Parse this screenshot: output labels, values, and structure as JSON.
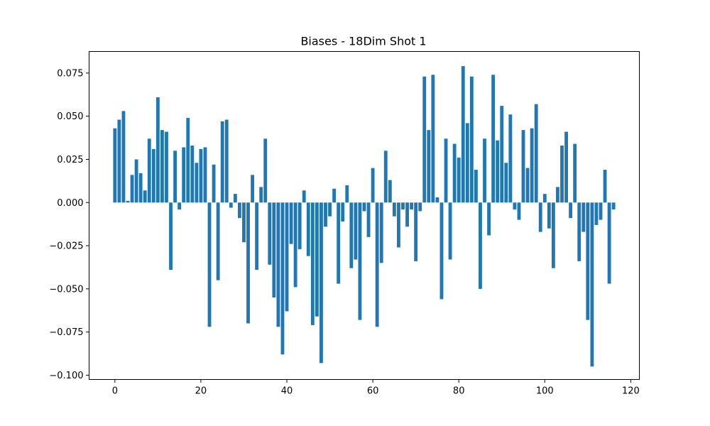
{
  "chart_data": {
    "type": "bar",
    "title": "Biases - 18Dim Shot 1",
    "xlabel": "",
    "ylabel": "",
    "xlim": [
      -6,
      122
    ],
    "ylim": [
      -0.1025,
      0.0875
    ],
    "xticks": [
      0,
      20,
      40,
      60,
      80,
      100,
      120
    ],
    "xtick_labels": [
      "0",
      "20",
      "40",
      "60",
      "80",
      "100",
      "120"
    ],
    "yticks": [
      -0.1,
      -0.075,
      -0.05,
      -0.025,
      0,
      0.025,
      0.05,
      0.075
    ],
    "ytick_labels": [
      "−0.100",
      "−0.075",
      "−0.050",
      "−0.025",
      "0.000",
      "0.025",
      "0.050",
      "0.075"
    ],
    "grid": false,
    "legend": "none",
    "bar_color": "#1f77b4",
    "values": [
      0.043,
      0.048,
      0.053,
      0.001,
      0.016,
      0.025,
      0.017,
      0.007,
      0.037,
      0.031,
      0.061,
      0.042,
      0.041,
      -0.039,
      0.03,
      -0.004,
      0.032,
      0.049,
      0.033,
      0.023,
      0.031,
      0.032,
      -0.072,
      0.022,
      -0.045,
      0.047,
      0.048,
      -0.003,
      0.005,
      -0.009,
      -0.023,
      -0.07,
      0.016,
      -0.039,
      0.009,
      0.037,
      -0.036,
      -0.055,
      -0.072,
      -0.088,
      -0.063,
      -0.024,
      -0.049,
      -0.027,
      0.007,
      -0.031,
      -0.071,
      -0.066,
      -0.093,
      -0.014,
      -0.008,
      0.008,
      -0.047,
      -0.011,
      0.01,
      -0.038,
      -0.033,
      -0.068,
      -0.005,
      -0.02,
      0.02,
      -0.072,
      -0.035,
      0.03,
      0.013,
      -0.008,
      -0.026,
      -0.004,
      -0.014,
      -0.004,
      -0.034,
      -0.005,
      0.073,
      0.042,
      0.074,
      0.003,
      -0.056,
      0.037,
      -0.033,
      0.034,
      0.026,
      0.079,
      0.046,
      0.073,
      0.019,
      -0.05,
      0.037,
      -0.019,
      0.074,
      0.036,
      0.056,
      0.023,
      0.051,
      -0.004,
      -0.01,
      0.042,
      0.02,
      0.043,
      0.057,
      -0.017,
      0.005,
      -0.015,
      -0.038,
      0.009,
      0.033,
      0.041,
      -0.009,
      0.034,
      -0.034,
      -0.017,
      -0.068,
      -0.095,
      -0.013,
      -0.01,
      0.019,
      -0.047,
      -0.004
    ]
  }
}
